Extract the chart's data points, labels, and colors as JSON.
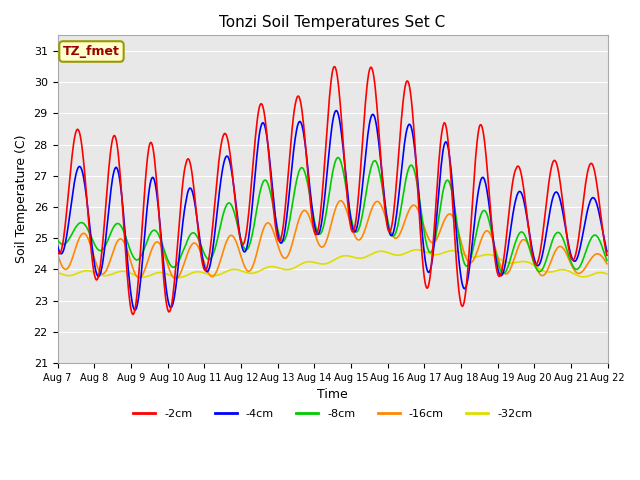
{
  "title": "Tonzi Soil Temperatures Set C",
  "xlabel": "Time",
  "ylabel": "Soil Temperature (C)",
  "ylim": [
    21.0,
    31.5
  ],
  "yticks": [
    21.0,
    22.0,
    23.0,
    24.0,
    25.0,
    26.0,
    27.0,
    28.0,
    29.0,
    30.0,
    31.0
  ],
  "background_color": "#e8e8e8",
  "legend_label": "TZ_fmet",
  "legend_bg": "#ffffcc",
  "legend_border": "#999900",
  "series_colors": {
    "-2cm": "#ff0000",
    "-4cm": "#0000ff",
    "-8cm": "#00cc00",
    "-16cm": "#ff8800",
    "-32cm": "#dddd00"
  },
  "n_days": 15,
  "points_per_day": 48,
  "start_day": 7
}
